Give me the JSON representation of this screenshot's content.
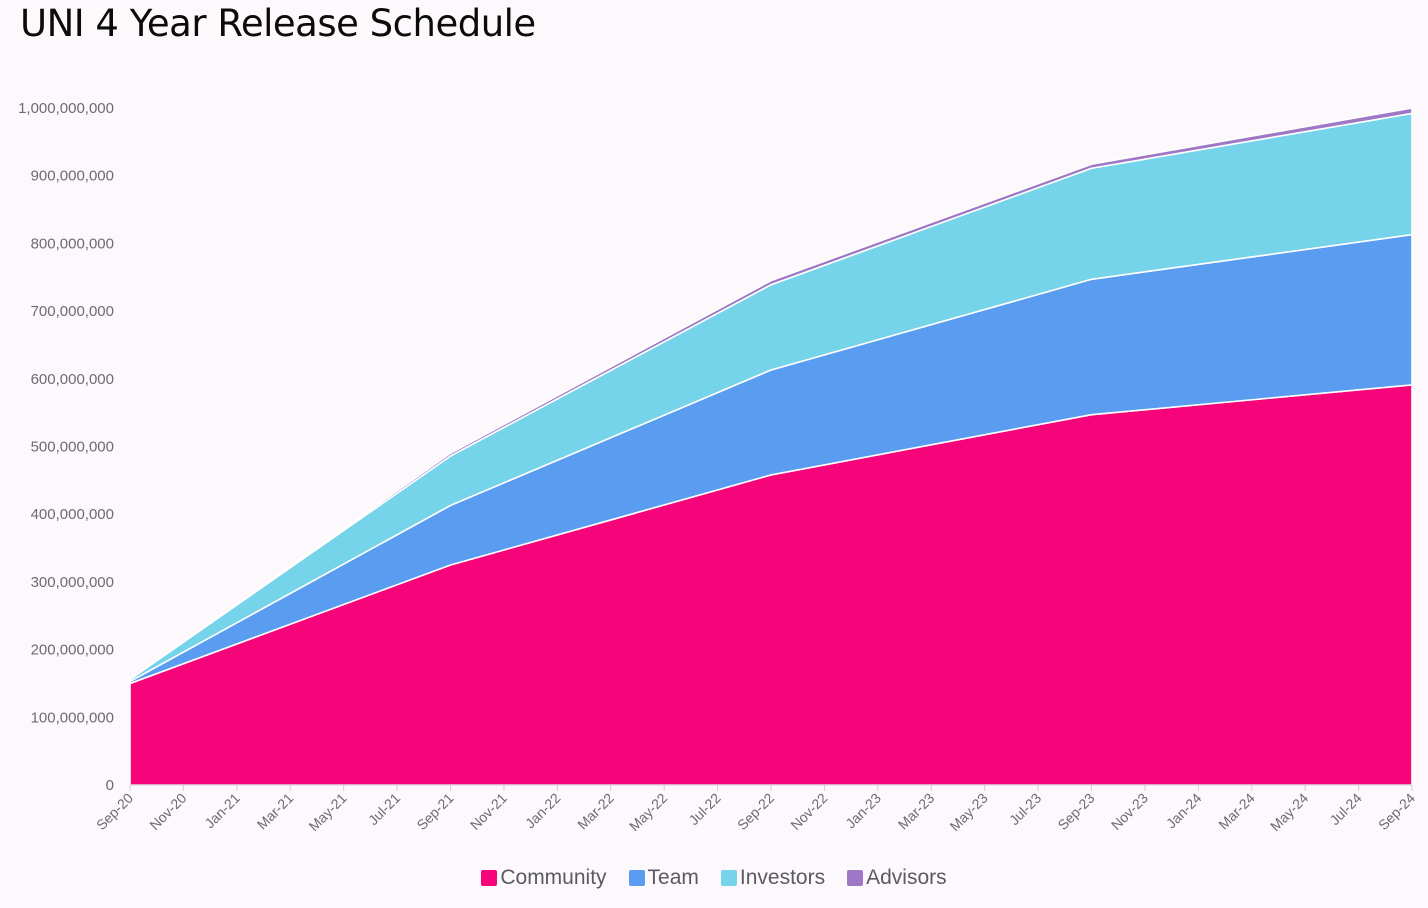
{
  "chart_data": {
    "type": "area",
    "stacked": true,
    "title": "UNI 4 Year Release Schedule",
    "xlabel": "",
    "ylabel": "",
    "ylim": [
      0,
      1000000000
    ],
    "yticks": [
      0,
      100000000,
      200000000,
      300000000,
      400000000,
      500000000,
      600000000,
      700000000,
      800000000,
      900000000,
      1000000000
    ],
    "ytick_labels": [
      "0",
      "100,000,000",
      "200,000,000",
      "300,000,000",
      "400,000,000",
      "500,000,000",
      "600,000,000",
      "700,000,000",
      "800,000,000",
      "900,000,000",
      "1,000,000,000"
    ],
    "x_tick_labels": [
      "Sep-20",
      "Nov-20",
      "Jan-21",
      "Mar-21",
      "May-21",
      "Jul-21",
      "Sep-21",
      "Nov-21",
      "Jan-22",
      "Mar-22",
      "May-22",
      "Jul-22",
      "Sep-22",
      "Nov-22",
      "Jan-23",
      "Mar-23",
      "May-23",
      "Jul-23",
      "Sep-23",
      "Nov-23",
      "Jan-24",
      "Mar-24",
      "May-24",
      "Jul-24",
      "Sep-24"
    ],
    "x_months": [
      0,
      12,
      24,
      36,
      48
    ],
    "x_month_span": 48,
    "legend_position": "bottom-center",
    "series": [
      {
        "name": "Community",
        "color": "#f5047a",
        "values": [
          150000000,
          325000000,
          458000000,
          547000000,
          591000000
        ]
      },
      {
        "name": "Team",
        "color": "#5a9cf0",
        "values": [
          3000000,
          88000000,
          155000000,
          200000000,
          222000000
        ]
      },
      {
        "name": "Investors",
        "color": "#75d3ea",
        "values": [
          3000000,
          73000000,
          126000000,
          164000000,
          179000000
        ]
      },
      {
        "name": "Advisors",
        "color": "#9e78c6",
        "values": [
          0,
          4000000,
          6000000,
          6000000,
          8000000
        ]
      }
    ]
  }
}
